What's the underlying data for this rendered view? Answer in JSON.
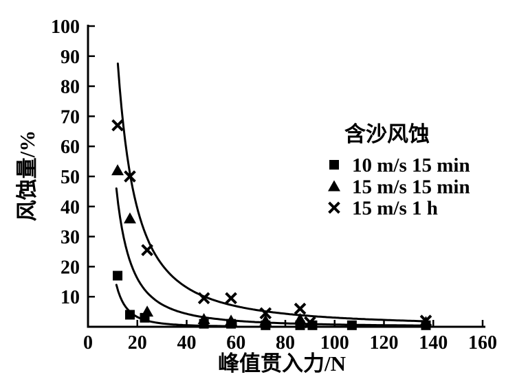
{
  "figure": {
    "background": "#ffffff",
    "ink": "#000000"
  },
  "chart_data": {
    "type": "scatter",
    "title": "",
    "xlabel": "峰值贯入力/N",
    "ylabel": "风蚀量/%",
    "xlim": [
      0,
      160
    ],
    "ylim": [
      0,
      100
    ],
    "xticks": [
      0,
      20,
      40,
      60,
      80,
      100,
      120,
      140,
      160
    ],
    "yticks": [
      10,
      20,
      30,
      40,
      50,
      60,
      70,
      80,
      90,
      100
    ],
    "grid": false,
    "legend": {
      "title": "含沙风蚀",
      "position": "inside-upper-right",
      "entries": [
        {
          "marker": "square",
          "label": "10 m/s 15 min"
        },
        {
          "marker": "triangle",
          "label": "15 m/s 15 min"
        },
        {
          "marker": "x",
          "label": "15 m/s 1 h"
        }
      ]
    },
    "series": [
      {
        "name": "10 m/s 15 min",
        "marker": "square",
        "points": [
          [
            12,
            17
          ],
          [
            17,
            4
          ],
          [
            23,
            3
          ],
          [
            47,
            1
          ],
          [
            58,
            1
          ],
          [
            72,
            0.5
          ],
          [
            86,
            0.5
          ],
          [
            91,
            0.5
          ],
          [
            107,
            0.5
          ],
          [
            137,
            0.5
          ]
        ]
      },
      {
        "name": "15 m/s 15 min",
        "marker": "triangle",
        "points": [
          [
            12,
            52
          ],
          [
            17,
            36
          ],
          [
            24,
            5
          ],
          [
            47,
            2.5
          ],
          [
            58,
            2
          ],
          [
            72,
            2
          ],
          [
            86,
            2.5
          ],
          [
            137,
            1.5
          ]
        ]
      },
      {
        "name": "15 m/s 1 h",
        "marker": "x",
        "points": [
          [
            12,
            67
          ],
          [
            17,
            50
          ],
          [
            24,
            25.5
          ],
          [
            47,
            9.5
          ],
          [
            58,
            9.5
          ],
          [
            72,
            4.5
          ],
          [
            86,
            6
          ],
          [
            90,
            1.5
          ],
          [
            137,
            2
          ]
        ]
      }
    ],
    "fitted_curves": [
      {
        "series": "15 m/s 1 h",
        "model": "power",
        "k": 4611,
        "b": 1.59,
        "x_start": 12.1,
        "x_end": 138
      },
      {
        "series": "15 m/s 15 min",
        "model": "power",
        "k": 4766,
        "b": 1.9,
        "x_start": 11.5,
        "x_end": 138
      },
      {
        "series": "10 m/s 15 min",
        "model": "power",
        "k": 8600,
        "b": 2.63,
        "x_start": 11.5,
        "x_end": 58
      }
    ]
  }
}
